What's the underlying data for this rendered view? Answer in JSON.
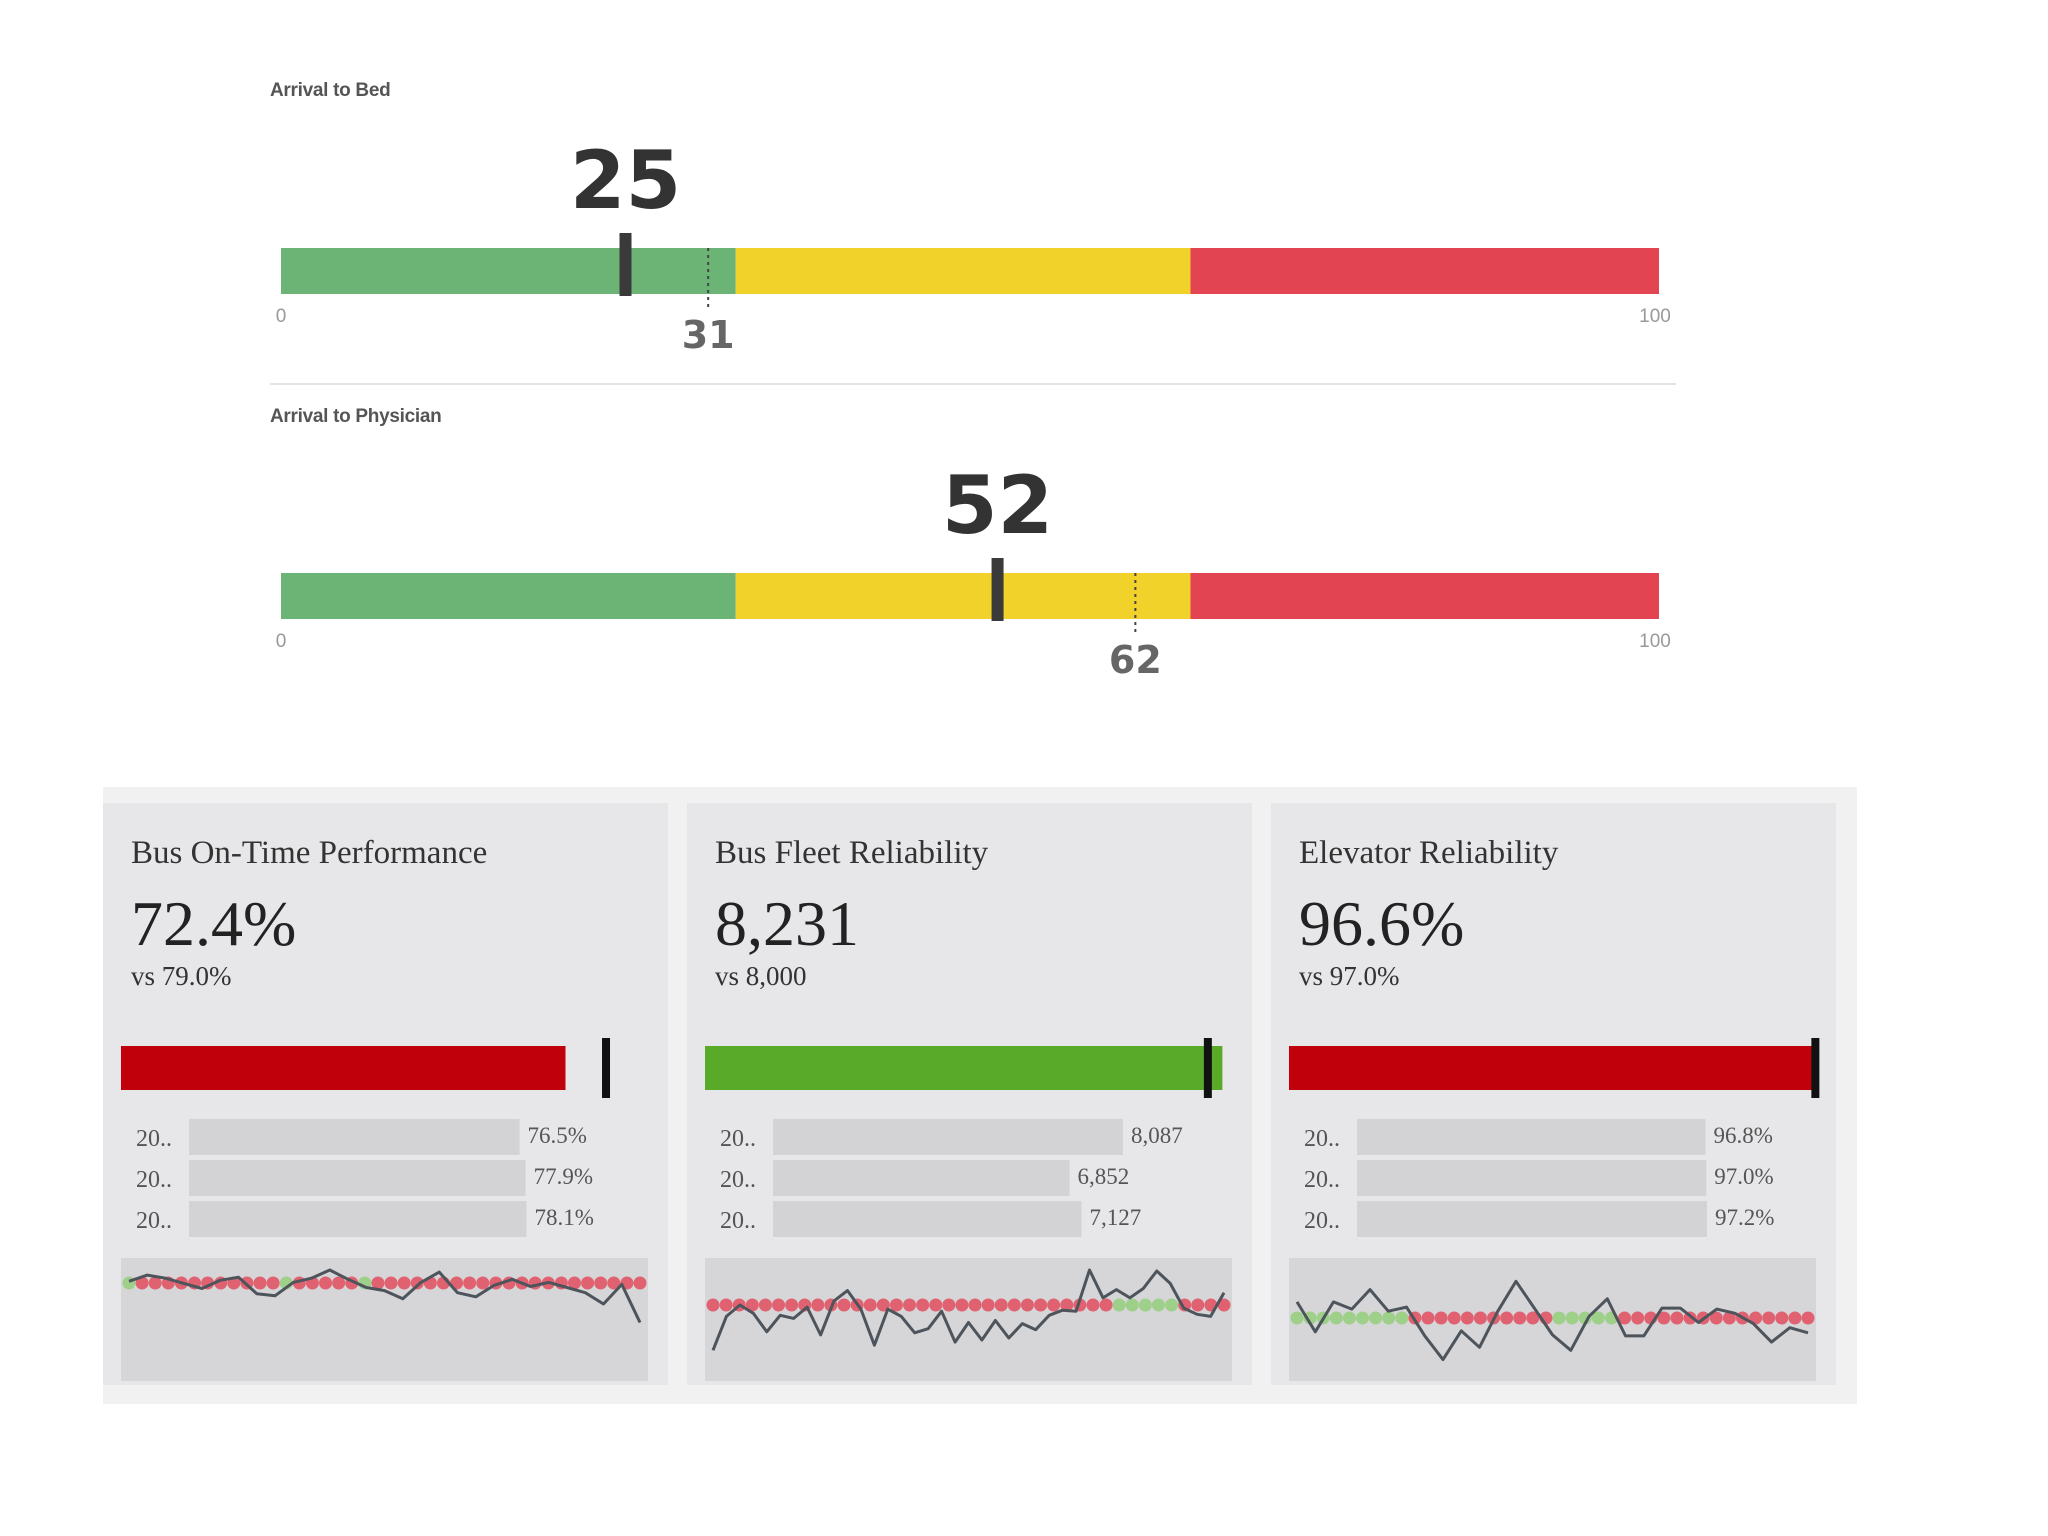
{
  "gauges": [
    {
      "title": "Arrival to Bed",
      "value": 25,
      "target": 31,
      "min": 0,
      "max": 100,
      "min_label": "0",
      "max_label": "100",
      "bands": [
        {
          "from": 0,
          "to": 33,
          "color": "#6cb475"
        },
        {
          "from": 33,
          "to": 66,
          "color": "#f1d22b"
        },
        {
          "from": 66,
          "to": 100,
          "color": "#e24551"
        }
      ]
    },
    {
      "title": "Arrival to Physician",
      "value": 52,
      "target": 62,
      "min": 0,
      "max": 100,
      "min_label": "0",
      "max_label": "100",
      "bands": [
        {
          "from": 0,
          "to": 33,
          "color": "#6cb475"
        },
        {
          "from": 33,
          "to": 66,
          "color": "#f1d22b"
        },
        {
          "from": 66,
          "to": 100,
          "color": "#e24551"
        }
      ]
    }
  ],
  "kpis": [
    {
      "title": "Bus On-Time Performance",
      "value_text": "72.4%",
      "target_text": "vs 79.0%",
      "value": 72.4,
      "target": 79.0,
      "scale_max": 86,
      "bar_color": "#c0000b",
      "history": [
        {
          "label": "20..",
          "value": 76.5,
          "text": "76.5%"
        },
        {
          "label": "20..",
          "value": 77.9,
          "text": "77.9%"
        },
        {
          "label": "20..",
          "value": 78.1,
          "text": "78.1%"
        }
      ],
      "history_max": 100,
      "history_bar_max": 81,
      "spark": [
        89,
        95,
        92,
        87,
        82,
        90,
        93,
        77,
        75,
        88,
        92,
        100,
        91,
        83,
        80,
        72,
        88,
        98,
        78,
        74,
        85,
        91,
        84,
        88,
        83,
        78,
        67,
        86,
        49
      ],
      "spark_dots": [
        "g",
        "r",
        "r",
        "r",
        "r",
        "r",
        "r",
        "r",
        "r",
        "r",
        "r",
        "r",
        "g",
        "r",
        "r",
        "r",
        "r",
        "r",
        "g",
        "r",
        "r",
        "r",
        "r",
        "r",
        "r",
        "r",
        "r",
        "r",
        "r",
        "r",
        "r",
        "r",
        "r",
        "r",
        "r",
        "r",
        "r",
        "r",
        "r",
        "r"
      ]
    },
    {
      "title": "Bus Fleet Reliability",
      "value_text": "8,231",
      "target_text": "vs 8,000",
      "value": 8231,
      "target": 8000,
      "scale_max": 8400,
      "bar_color": "#5aaa2a",
      "history": [
        {
          "label": "20..",
          "value": 8087,
          "text": "8,087"
        },
        {
          "label": "20..",
          "value": 6852,
          "text": "6,852"
        },
        {
          "label": "20..",
          "value": 7127,
          "text": "7,127"
        }
      ],
      "history_max": 8087,
      "history_bar_max": 8087,
      "spark": [
        22,
        55,
        66,
        58,
        40,
        56,
        53,
        64,
        37,
        70,
        80,
        62,
        27,
        62,
        55,
        39,
        43,
        60,
        30,
        49,
        32,
        51,
        34,
        48,
        42,
        56,
        61,
        60,
        100,
        73,
        81,
        73,
        82,
        99,
        87,
        63,
        57,
        55,
        78
      ],
      "spark_dots": [
        "r",
        "r",
        "r",
        "r",
        "r",
        "r",
        "r",
        "r",
        "r",
        "r",
        "r",
        "r",
        "r",
        "r",
        "r",
        "r",
        "r",
        "r",
        "r",
        "r",
        "r",
        "r",
        "r",
        "r",
        "r",
        "r",
        "r",
        "r",
        "r",
        "r",
        "r",
        "g",
        "g",
        "g",
        "g",
        "g",
        "r",
        "r",
        "r",
        "r"
      ]
    },
    {
      "title": "Elevator Reliability",
      "value_text": "96.6%",
      "target_text": "vs 97.0%",
      "value": 96.6,
      "target": 97.0,
      "scale_max": 97.3,
      "bar_color": "#c0000b",
      "history": [
        {
          "label": "20..",
          "value": 96.8,
          "text": "96.8%"
        },
        {
          "label": "20..",
          "value": 97.0,
          "text": "97.0%"
        },
        {
          "label": "20..",
          "value": 97.2,
          "text": "97.2%"
        }
      ],
      "history_max": 100,
      "history_bar_max": 97.2,
      "spark": [
        69,
        40,
        69,
        62,
        81,
        60,
        64,
        36,
        13,
        41,
        25,
        60,
        89,
        63,
        37,
        22,
        55,
        72,
        36,
        36,
        63,
        63,
        49,
        62,
        58,
        48,
        30,
        44,
        39
      ],
      "spark_dots": [
        "g",
        "g",
        "g",
        "g",
        "g",
        "g",
        "g",
        "g",
        "g",
        "r",
        "r",
        "r",
        "r",
        "r",
        "r",
        "r",
        "r",
        "r",
        "r",
        "r",
        "g",
        "g",
        "g",
        "g",
        "g",
        "r",
        "r",
        "r",
        "r",
        "r",
        "r",
        "r",
        "r",
        "r",
        "r",
        "r",
        "r",
        "r",
        "r",
        "r"
      ]
    }
  ]
}
